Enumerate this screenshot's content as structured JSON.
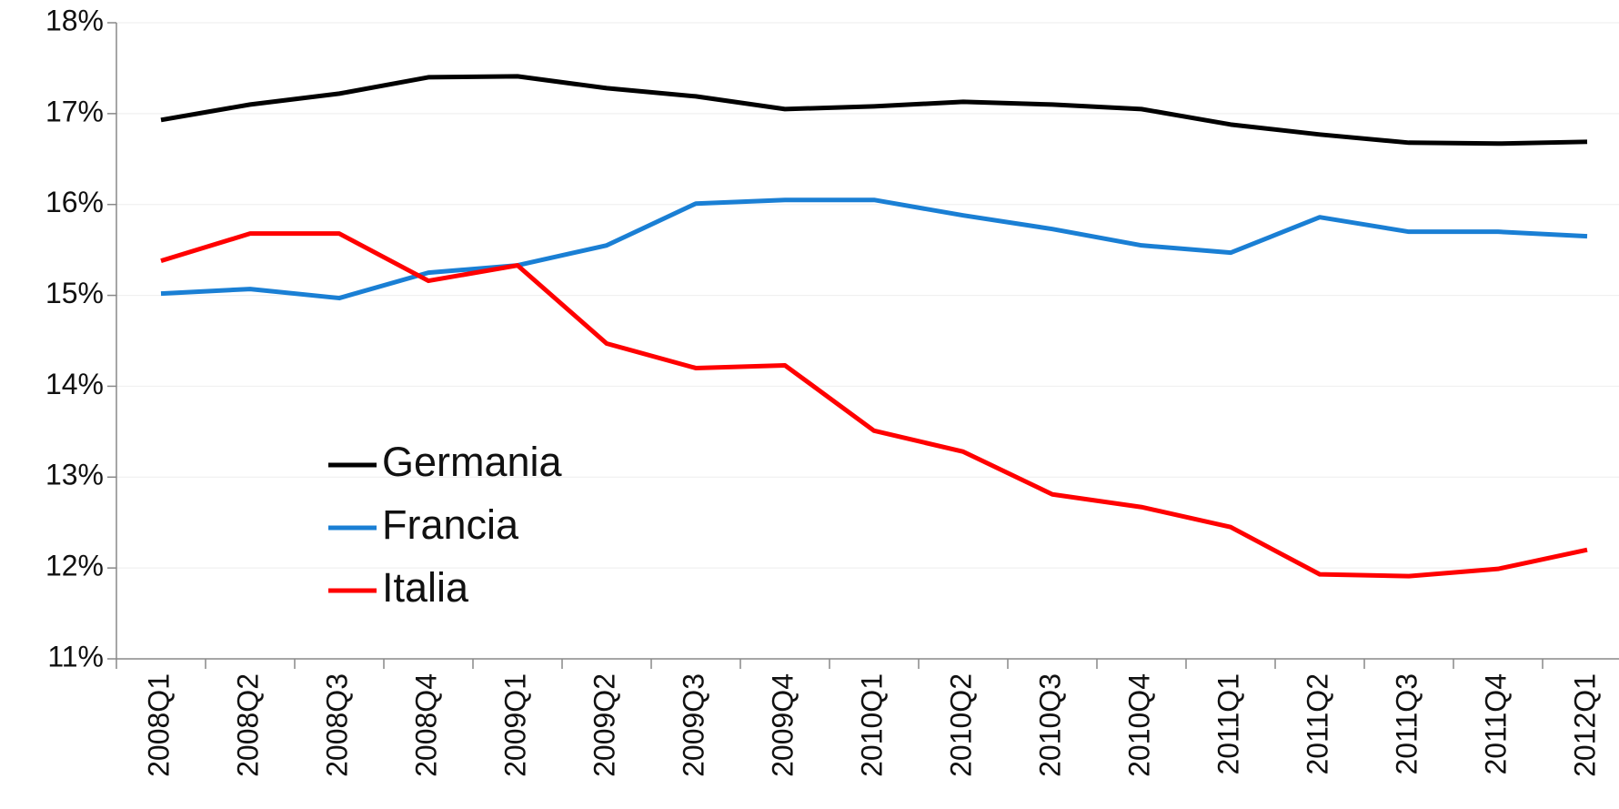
{
  "chart_data": {
    "type": "line",
    "categories": [
      "2008Q1",
      "2008Q2",
      "2008Q3",
      "2008Q4",
      "2009Q1",
      "2009Q2",
      "2009Q3",
      "2009Q4",
      "2010Q1",
      "2010Q2",
      "2010Q3",
      "2010Q4",
      "2011Q1",
      "2011Q2",
      "2011Q3",
      "2011Q4",
      "2012Q1"
    ],
    "series": [
      {
        "name": "Germania",
        "color": "#000000",
        "values": [
          16.93,
          17.1,
          17.22,
          17.4,
          17.41,
          17.28,
          17.19,
          17.05,
          17.08,
          17.13,
          17.1,
          17.05,
          16.88,
          16.77,
          16.68,
          16.67,
          16.69
        ]
      },
      {
        "name": "Francia",
        "color": "#1a7fd4",
        "values": [
          15.02,
          15.07,
          14.97,
          15.25,
          15.33,
          15.55,
          16.01,
          16.05,
          16.05,
          15.88,
          15.73,
          15.55,
          15.47,
          15.86,
          15.7,
          15.7,
          15.65
        ]
      },
      {
        "name": "Italia",
        "color": "#ff0000",
        "values": [
          15.38,
          15.68,
          15.68,
          15.16,
          15.33,
          14.47,
          14.2,
          14.23,
          13.51,
          13.28,
          12.81,
          12.67,
          12.45,
          11.93,
          11.91,
          11.99,
          12.2
        ]
      }
    ],
    "ylim": [
      11,
      18
    ],
    "yticks": [
      {
        "value": 11,
        "label": "11%"
      },
      {
        "value": 12,
        "label": "12%"
      },
      {
        "value": 13,
        "label": "13%"
      },
      {
        "value": 14,
        "label": "14%"
      },
      {
        "value": 15,
        "label": "15%"
      },
      {
        "value": 16,
        "label": "16%"
      },
      {
        "value": 17,
        "label": "17%"
      },
      {
        "value": 18,
        "label": "18%"
      }
    ],
    "grid": true,
    "legend": "lower left"
  }
}
